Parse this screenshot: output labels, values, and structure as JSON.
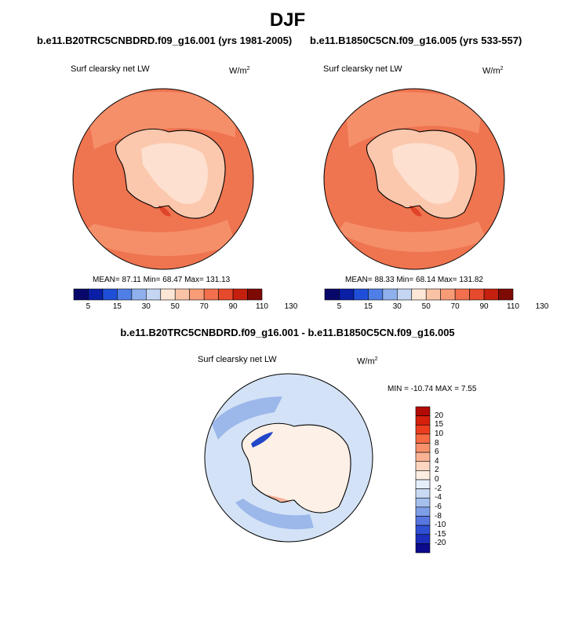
{
  "title": "DJF",
  "variable": "Surf clearsky net LW",
  "units_base": "W/m",
  "units_sup": "2",
  "panels": [
    {
      "title": "b.e11.B20TRC5CNBDRD.f09_g16.001 (yrs 1981-2005)",
      "stats": "MEAN=  87.11  Min=  68.47  Max= 131.13"
    },
    {
      "title": "b.e11.B1850C5CN.f09_g16.005 (yrs 533-557)",
      "stats": "MEAN=  88.33  Min=  68.14  Max= 131.82"
    }
  ],
  "diff_panel": {
    "title": "b.e11.B20TRC5CNBDRD.f09_g16.001 - b.e11.B1850C5CN.f09_g16.005",
    "stats": "MIN = -10.74 MAX =   7.55"
  },
  "colorbar_main": {
    "colors": [
      "#08086b",
      "#0a1fa6",
      "#1f4fd8",
      "#4f7fe6",
      "#8fb0ec",
      "#c4d6f2",
      "#fde6d6",
      "#fbc3a6",
      "#f89b77",
      "#f2704d",
      "#e64a2c",
      "#c5200e",
      "#7d0a05"
    ],
    "labels": [
      "5",
      "15",
      "30",
      "50",
      "70",
      "90",
      "110",
      "130"
    ]
  },
  "colorbar_diff": {
    "colors": [
      "#b30a05",
      "#d6200e",
      "#ec3d1f",
      "#f56a43",
      "#f7916b",
      "#f9b394",
      "#fcd6c0",
      "#fdeee3",
      "#e4edf9",
      "#c9daf4",
      "#a6c0ee",
      "#7f9ee8",
      "#5776e0",
      "#2f4fd4",
      "#1c2ebb",
      "#0b0b8c"
    ],
    "labels": [
      "20",
      "15",
      "10",
      "8",
      "6",
      "4",
      "2",
      "0",
      "-2",
      "-4",
      "-6",
      "-8",
      "-10",
      "-15",
      "-20"
    ]
  },
  "map_colors": {
    "ocean_main": "#ef7450",
    "mid_main": "#f58f6a",
    "ice_main": "#fbc8ad",
    "interior_main": "#fde0cf",
    "dark_spot": "#e0452a",
    "diff_base": "#d3e2f6",
    "diff_blue": "#9cb7ea",
    "diff_land": "#fdf0e6",
    "diff_warm": "#f8b196",
    "diff_dark": "#2246c8",
    "coast": "#000000"
  }
}
